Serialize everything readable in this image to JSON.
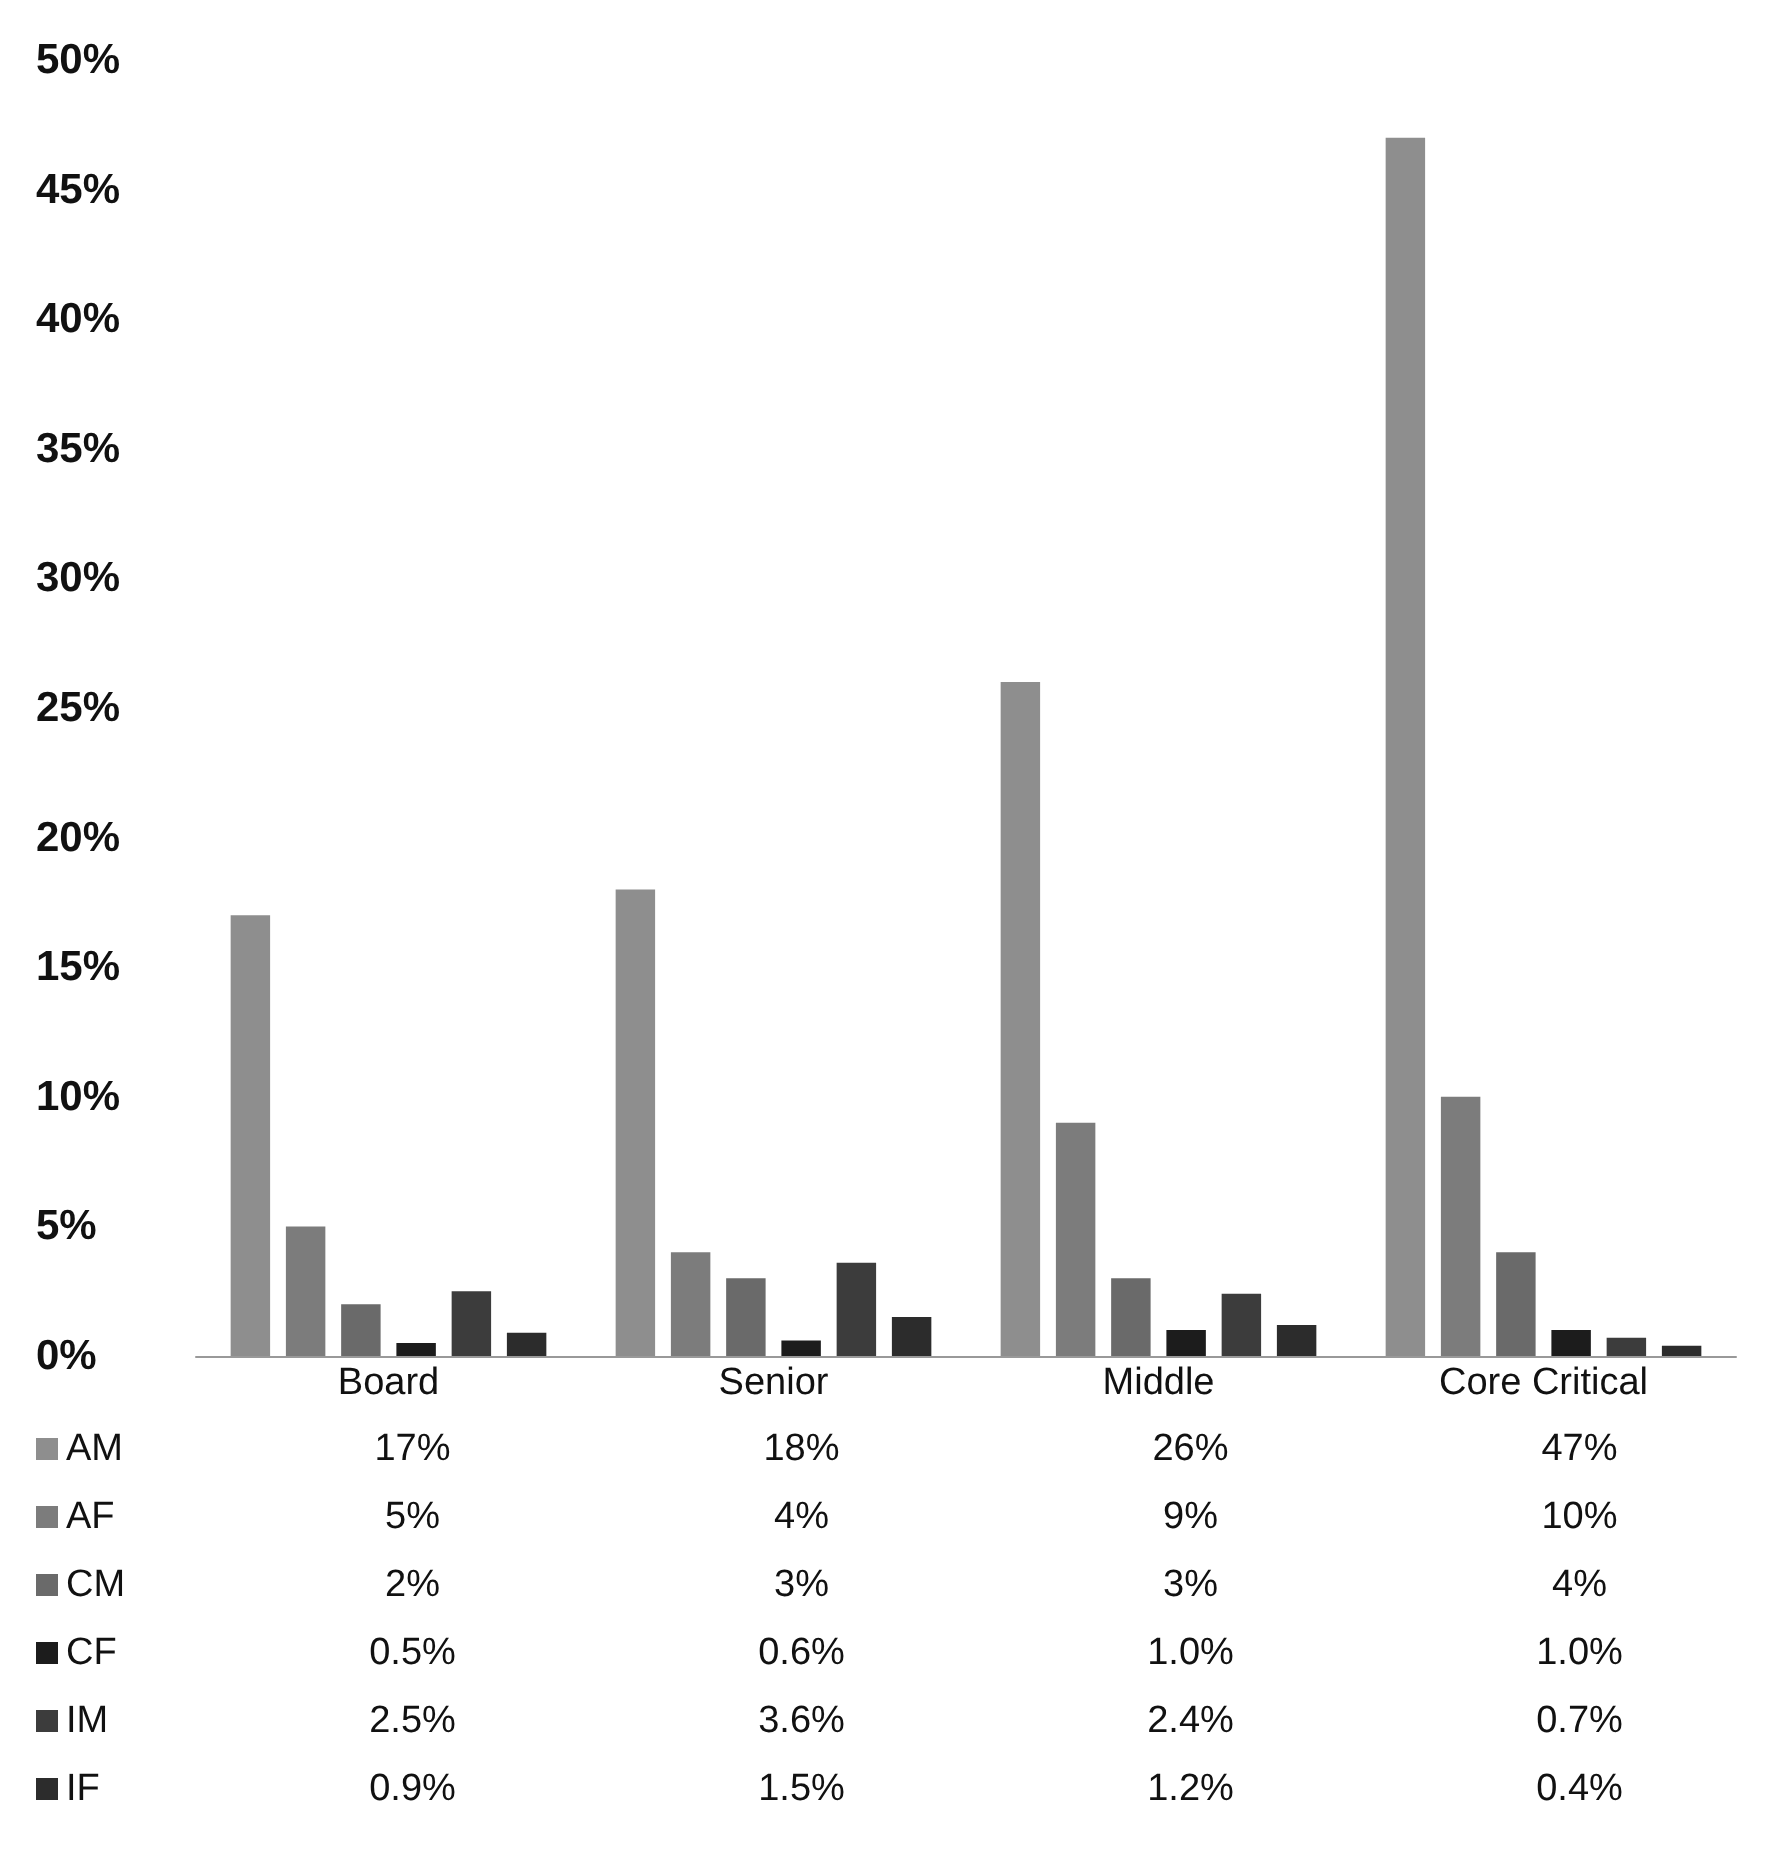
{
  "chart_data": {
    "type": "bar",
    "categories": [
      "Board",
      "Senior",
      "Middle",
      "Core Critical"
    ],
    "series": [
      {
        "name": "AM",
        "color": "#8e8e8e",
        "values": [
          17,
          18,
          26,
          47
        ],
        "value_labels": [
          "17%",
          "18%",
          "26%",
          "47%"
        ]
      },
      {
        "name": "AF",
        "color": "#7c7c7c",
        "values": [
          5,
          4,
          9,
          10
        ],
        "value_labels": [
          "5%",
          "4%",
          "9%",
          "10%"
        ]
      },
      {
        "name": "CM",
        "color": "#6a6a6a",
        "values": [
          2,
          3,
          3,
          4
        ],
        "value_labels": [
          "2%",
          "3%",
          "3%",
          "4%"
        ]
      },
      {
        "name": "CF",
        "color": "#1c1c1c",
        "values": [
          0.5,
          0.6,
          1.0,
          1.0
        ],
        "value_labels": [
          "0.5%",
          "0.6%",
          "1.0%",
          "1.0%"
        ]
      },
      {
        "name": "IM",
        "color": "#3c3c3c",
        "values": [
          2.5,
          3.6,
          2.4,
          0.7
        ],
        "value_labels": [
          "2.5%",
          "3.6%",
          "2.4%",
          "0.7%"
        ]
      },
      {
        "name": "IF",
        "color": "#2c2c2c",
        "values": [
          0.9,
          1.5,
          1.2,
          0.4
        ],
        "value_labels": [
          "0.9%",
          "1.5%",
          "1.2%",
          "0.4%"
        ]
      }
    ],
    "ylim": [
      0,
      50
    ],
    "yticks": [
      {
        "value": 0,
        "label": "0%"
      },
      {
        "value": 5,
        "label": "5%"
      },
      {
        "value": 10,
        "label": "10%"
      },
      {
        "value": 15,
        "label": "15%"
      },
      {
        "value": 20,
        "label": "20%"
      },
      {
        "value": 25,
        "label": "25%"
      },
      {
        "value": 30,
        "label": "30%"
      },
      {
        "value": 35,
        "label": "35%"
      },
      {
        "value": 40,
        "label": "40%"
      },
      {
        "value": 45,
        "label": "45%"
      },
      {
        "value": 50,
        "label": "50%"
      }
    ],
    "grid": false,
    "legend": "bottom"
  }
}
